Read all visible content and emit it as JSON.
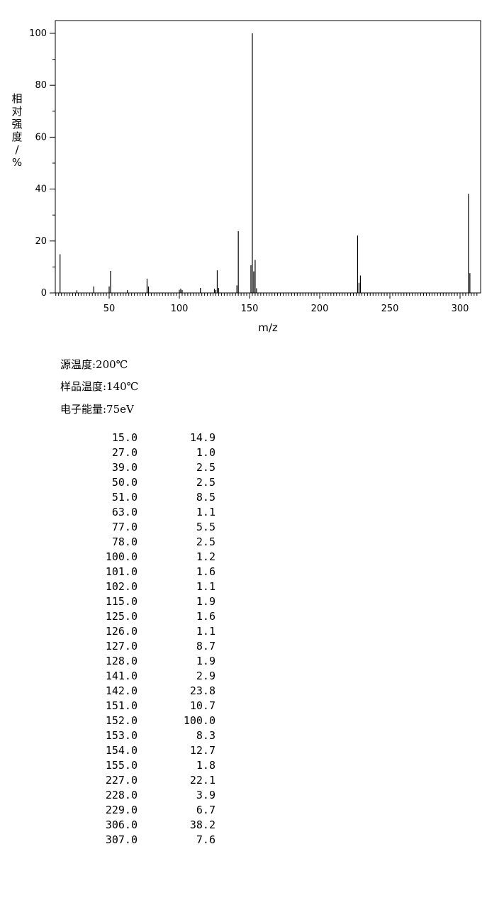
{
  "chart_data": {
    "type": "bar",
    "xlabel": "m/z",
    "ylabel": "相对强度/%",
    "xlim": [
      10,
      315
    ],
    "ylim": [
      0,
      105
    ],
    "x_ticks": [
      50,
      100,
      150,
      200,
      250,
      300
    ],
    "y_ticks": [
      0,
      20,
      40,
      60,
      80,
      100
    ],
    "grid": false,
    "series": [
      {
        "x": [
          15,
          27,
          39,
          50,
          51,
          63,
          77,
          78,
          100,
          101,
          102,
          115,
          125,
          126,
          127,
          128,
          141,
          142,
          151,
          152,
          153,
          154,
          155,
          227,
          228,
          229,
          306,
          307
        ],
        "values": [
          14.9,
          1.0,
          2.5,
          2.5,
          8.5,
          1.1,
          5.5,
          2.5,
          1.2,
          1.6,
          1.1,
          1.9,
          1.6,
          1.1,
          8.7,
          1.9,
          2.9,
          23.8,
          10.7,
          100.0,
          8.3,
          12.7,
          1.8,
          22.1,
          3.9,
          6.7,
          38.2,
          7.6
        ]
      }
    ]
  },
  "conditions": [
    "源温度:200℃",
    "样品温度:140℃",
    "电子能量:75eV"
  ],
  "peak_table": [
    [
      "15.0",
      "14.9"
    ],
    [
      "27.0",
      "1.0"
    ],
    [
      "39.0",
      "2.5"
    ],
    [
      "50.0",
      "2.5"
    ],
    [
      "51.0",
      "8.5"
    ],
    [
      "63.0",
      "1.1"
    ],
    [
      "77.0",
      "5.5"
    ],
    [
      "78.0",
      "2.5"
    ],
    [
      "100.0",
      "1.2"
    ],
    [
      "101.0",
      "1.6"
    ],
    [
      "102.0",
      "1.1"
    ],
    [
      "115.0",
      "1.9"
    ],
    [
      "125.0",
      "1.6"
    ],
    [
      "126.0",
      "1.1"
    ],
    [
      "127.0",
      "8.7"
    ],
    [
      "128.0",
      "1.9"
    ],
    [
      "141.0",
      "2.9"
    ],
    [
      "142.0",
      "23.8"
    ],
    [
      "151.0",
      "10.7"
    ],
    [
      "152.0",
      "100.0"
    ],
    [
      "153.0",
      "8.3"
    ],
    [
      "154.0",
      "12.7"
    ],
    [
      "155.0",
      "1.8"
    ],
    [
      "227.0",
      "22.1"
    ],
    [
      "228.0",
      "3.9"
    ],
    [
      "229.0",
      "6.7"
    ],
    [
      "306.0",
      "38.2"
    ],
    [
      "307.0",
      "7.6"
    ]
  ]
}
